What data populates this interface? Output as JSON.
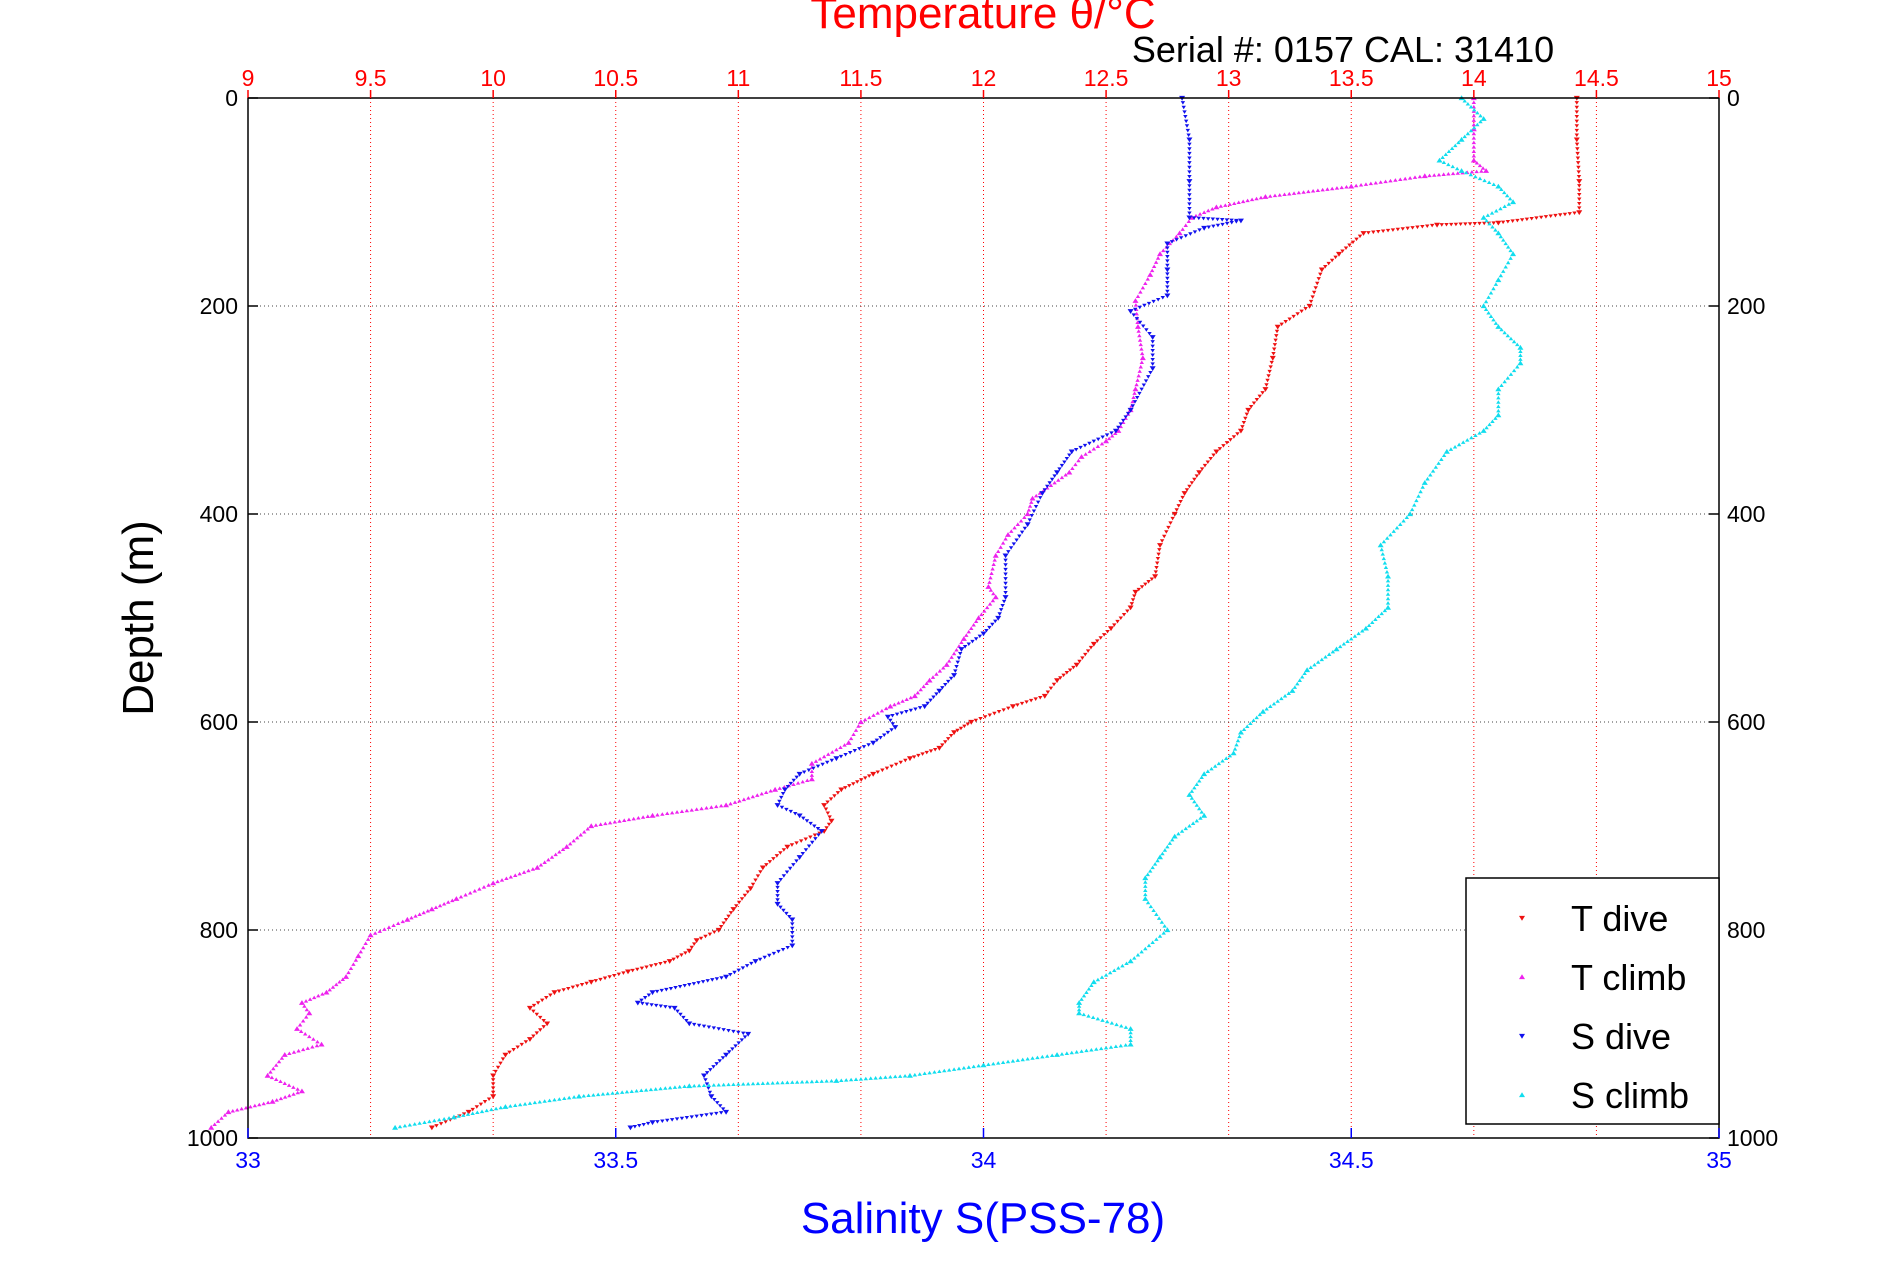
{
  "chart_data": {
    "type": "scatter",
    "title": "Temperature θ/°C",
    "subtitle": "Serial #: 0157  CAL: 31410",
    "xlabel": "Salinity S(PSS-78)",
    "ylabel": "Depth (m)",
    "ylim": [
      0,
      1000
    ],
    "y_reversed": true,
    "temperature_axis": {
      "range": [
        9,
        15
      ],
      "ticks": [
        "9",
        "9.5",
        "10",
        "10.5",
        "11",
        "11.5",
        "12",
        "12.5",
        "13",
        "13.5",
        "14",
        "14.5",
        "15"
      ]
    },
    "salinity_axis": {
      "range": [
        33,
        35
      ],
      "ticks": [
        "33",
        "33.5",
        "34",
        "34.5",
        "35"
      ]
    },
    "depth_ticks": [
      "0",
      "200",
      "400",
      "600",
      "800",
      "1000"
    ],
    "grid": true,
    "legend_position": "bottom-right",
    "colors": {
      "title": "#ff0000",
      "temperature_axis": "#ff0000",
      "salinity_axis": "#0000ff",
      "grid": "#444444",
      "frame": "#000000"
    },
    "series": [
      {
        "name": "T dive",
        "axis": "temperature",
        "color": "#ee1111",
        "marker": "triangle-down",
        "points": [
          [
            14.42,
            0
          ],
          [
            14.42,
            40
          ],
          [
            14.43,
            80
          ],
          [
            14.43,
            110
          ],
          [
            14.1,
            120
          ],
          [
            13.85,
            122
          ],
          [
            13.55,
            130
          ],
          [
            13.45,
            150
          ],
          [
            13.38,
            165
          ],
          [
            13.33,
            200
          ],
          [
            13.2,
            220
          ],
          [
            13.18,
            250
          ],
          [
            13.15,
            280
          ],
          [
            13.08,
            300
          ],
          [
            13.05,
            320
          ],
          [
            12.95,
            340
          ],
          [
            12.88,
            360
          ],
          [
            12.82,
            380
          ],
          [
            12.78,
            400
          ],
          [
            12.72,
            430
          ],
          [
            12.7,
            460
          ],
          [
            12.62,
            475
          ],
          [
            12.6,
            490
          ],
          [
            12.52,
            510
          ],
          [
            12.45,
            525
          ],
          [
            12.38,
            545
          ],
          [
            12.3,
            560
          ],
          [
            12.25,
            575
          ],
          [
            12.12,
            585
          ],
          [
            11.95,
            600
          ],
          [
            11.88,
            610
          ],
          [
            11.82,
            625
          ],
          [
            11.7,
            635
          ],
          [
            11.55,
            650
          ],
          [
            11.42,
            665
          ],
          [
            11.35,
            680
          ],
          [
            11.38,
            695
          ],
          [
            11.35,
            705
          ],
          [
            11.2,
            720
          ],
          [
            11.1,
            740
          ],
          [
            11.05,
            760
          ],
          [
            10.98,
            780
          ],
          [
            10.92,
            800
          ],
          [
            10.83,
            810
          ],
          [
            10.8,
            820
          ],
          [
            10.72,
            830
          ],
          [
            10.55,
            840
          ],
          [
            10.4,
            850
          ],
          [
            10.25,
            860
          ],
          [
            10.15,
            875
          ],
          [
            10.22,
            890
          ],
          [
            10.15,
            905
          ],
          [
            10.05,
            920
          ],
          [
            10.0,
            940
          ],
          [
            10.0,
            960
          ],
          [
            9.9,
            975
          ],
          [
            9.75,
            990
          ]
        ]
      },
      {
        "name": "T climb",
        "axis": "temperature",
        "color": "#ee22ee",
        "marker": "triangle-up",
        "points": [
          [
            14.0,
            0
          ],
          [
            14.0,
            30
          ],
          [
            14.0,
            60
          ],
          [
            14.05,
            70
          ],
          [
            13.8,
            75
          ],
          [
            13.5,
            85
          ],
          [
            13.15,
            95
          ],
          [
            12.95,
            105
          ],
          [
            12.85,
            115
          ],
          [
            12.8,
            130
          ],
          [
            12.72,
            150
          ],
          [
            12.68,
            170
          ],
          [
            12.62,
            195
          ],
          [
            12.63,
            220
          ],
          [
            12.65,
            250
          ],
          [
            12.62,
            280
          ],
          [
            12.6,
            300
          ],
          [
            12.55,
            320
          ],
          [
            12.5,
            330
          ],
          [
            12.4,
            345
          ],
          [
            12.35,
            360
          ],
          [
            12.2,
            385
          ],
          [
            12.18,
            400
          ],
          [
            12.1,
            420
          ],
          [
            12.05,
            440
          ],
          [
            12.02,
            470
          ],
          [
            12.05,
            480
          ],
          [
            11.98,
            500
          ],
          [
            11.92,
            520
          ],
          [
            11.85,
            545
          ],
          [
            11.78,
            560
          ],
          [
            11.72,
            575
          ],
          [
            11.62,
            585
          ],
          [
            11.5,
            600
          ],
          [
            11.45,
            620
          ],
          [
            11.3,
            640
          ],
          [
            11.3,
            655
          ],
          [
            11.15,
            665
          ],
          [
            10.95,
            680
          ],
          [
            10.65,
            690
          ],
          [
            10.4,
            700
          ],
          [
            10.3,
            720
          ],
          [
            10.18,
            740
          ],
          [
            10.0,
            755
          ],
          [
            9.85,
            770
          ],
          [
            9.75,
            780
          ],
          [
            9.65,
            790
          ],
          [
            9.5,
            805
          ],
          [
            9.45,
            825
          ],
          [
            9.4,
            845
          ],
          [
            9.32,
            860
          ],
          [
            9.22,
            870
          ],
          [
            9.25,
            880
          ],
          [
            9.2,
            895
          ],
          [
            9.3,
            910
          ],
          [
            9.15,
            920
          ],
          [
            9.08,
            940
          ],
          [
            9.22,
            955
          ],
          [
            9.1,
            965
          ],
          [
            8.92,
            975
          ],
          [
            8.85,
            990
          ]
        ]
      },
      {
        "name": "S dive",
        "axis": "salinity",
        "color": "#1111ee",
        "marker": "triangle-down",
        "points": [
          [
            34.27,
            0
          ],
          [
            34.28,
            40
          ],
          [
            34.28,
            80
          ],
          [
            34.28,
            115
          ],
          [
            34.35,
            118
          ],
          [
            34.3,
            125
          ],
          [
            34.25,
            140
          ],
          [
            34.25,
            165
          ],
          [
            34.25,
            190
          ],
          [
            34.2,
            205
          ],
          [
            34.23,
            230
          ],
          [
            34.23,
            260
          ],
          [
            34.2,
            300
          ],
          [
            34.18,
            320
          ],
          [
            34.12,
            340
          ],
          [
            34.1,
            360
          ],
          [
            34.08,
            380
          ],
          [
            34.06,
            410
          ],
          [
            34.03,
            440
          ],
          [
            34.03,
            480
          ],
          [
            34.02,
            500
          ],
          [
            34.0,
            515
          ],
          [
            33.97,
            530
          ],
          [
            33.96,
            555
          ],
          [
            33.94,
            570
          ],
          [
            33.92,
            585
          ],
          [
            33.87,
            595
          ],
          [
            33.88,
            605
          ],
          [
            33.85,
            620
          ],
          [
            33.8,
            635
          ],
          [
            33.75,
            650
          ],
          [
            33.73,
            665
          ],
          [
            33.72,
            680
          ],
          [
            33.75,
            690
          ],
          [
            33.78,
            705
          ],
          [
            33.75,
            730
          ],
          [
            33.72,
            755
          ],
          [
            33.72,
            775
          ],
          [
            33.74,
            790
          ],
          [
            33.74,
            815
          ],
          [
            33.69,
            830
          ],
          [
            33.65,
            845
          ],
          [
            33.55,
            860
          ],
          [
            33.53,
            870
          ],
          [
            33.58,
            875
          ],
          [
            33.6,
            890
          ],
          [
            33.68,
            900
          ],
          [
            33.65,
            920
          ],
          [
            33.62,
            940
          ],
          [
            33.63,
            960
          ],
          [
            33.65,
            975
          ],
          [
            33.55,
            985
          ],
          [
            33.52,
            990
          ]
        ]
      },
      {
        "name": "S climb",
        "axis": "salinity",
        "color": "#11ddee",
        "marker": "triangle-up",
        "points": [
          [
            34.65,
            0
          ],
          [
            34.68,
            20
          ],
          [
            34.65,
            40
          ],
          [
            34.62,
            60
          ],
          [
            34.65,
            70
          ],
          [
            34.7,
            85
          ],
          [
            34.72,
            100
          ],
          [
            34.68,
            115
          ],
          [
            34.7,
            130
          ],
          [
            34.72,
            150
          ],
          [
            34.7,
            175
          ],
          [
            34.68,
            200
          ],
          [
            34.7,
            220
          ],
          [
            34.73,
            240
          ],
          [
            34.73,
            255
          ],
          [
            34.7,
            280
          ],
          [
            34.7,
            305
          ],
          [
            34.68,
            320
          ],
          [
            34.63,
            340
          ],
          [
            34.6,
            370
          ],
          [
            34.58,
            400
          ],
          [
            34.54,
            430
          ],
          [
            34.55,
            460
          ],
          [
            34.55,
            490
          ],
          [
            34.52,
            510
          ],
          [
            34.48,
            530
          ],
          [
            34.44,
            550
          ],
          [
            34.42,
            570
          ],
          [
            34.38,
            590
          ],
          [
            34.35,
            610
          ],
          [
            34.34,
            630
          ],
          [
            34.3,
            650
          ],
          [
            34.28,
            670
          ],
          [
            34.3,
            690
          ],
          [
            34.26,
            710
          ],
          [
            34.24,
            730
          ],
          [
            34.22,
            750
          ],
          [
            34.22,
            770
          ],
          [
            34.25,
            800
          ],
          [
            34.2,
            830
          ],
          [
            34.15,
            850
          ],
          [
            34.13,
            870
          ],
          [
            34.13,
            880
          ],
          [
            34.2,
            895
          ],
          [
            34.2,
            910
          ],
          [
            34.1,
            920
          ],
          [
            34.0,
            930
          ],
          [
            33.9,
            940
          ],
          [
            33.8,
            945
          ],
          [
            33.6,
            950
          ],
          [
            33.45,
            960
          ],
          [
            33.35,
            970
          ],
          [
            33.28,
            980
          ],
          [
            33.2,
            990
          ]
        ]
      }
    ]
  }
}
